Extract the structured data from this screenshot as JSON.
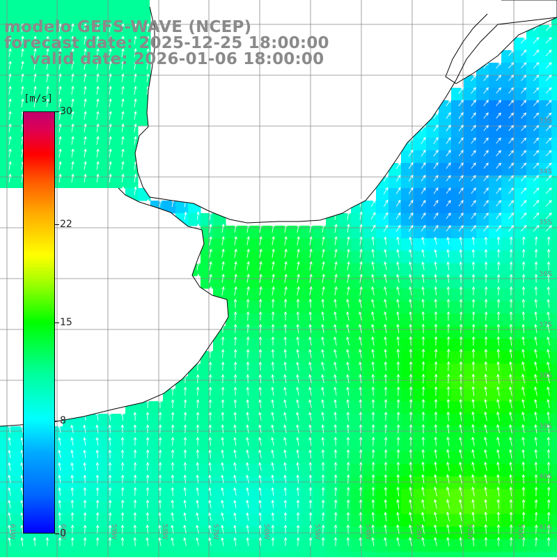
{
  "header": {
    "line1": "modelo GEFS-WAVE (NCEP)",
    "line2": "forecast date: 2025-12-25 18:00:00",
    "line3": "valid date: 2026-01-06 18:00:00"
  },
  "colorbar": {
    "units": "[m/s]",
    "ticks": [
      "30",
      "22",
      "15",
      "8",
      "0"
    ],
    "tick_values": [
      30,
      22,
      15,
      8,
      0
    ],
    "range": [
      0,
      30
    ]
  },
  "map": {
    "lat_labels": [
      "33S",
      "34S",
      "35S",
      "36S",
      "37S",
      "38S",
      "39S",
      "40S",
      "41S"
    ],
    "lon_labels": [
      "61W",
      "60W",
      "59W",
      "58W",
      "57W",
      "56W",
      "55W",
      "54W",
      "53W",
      "52W",
      "51W"
    ],
    "land_color": "#ffffff",
    "coast_color": "#000000",
    "grid_color": "#888888",
    "arrow_color": "#ffffff"
  }
}
